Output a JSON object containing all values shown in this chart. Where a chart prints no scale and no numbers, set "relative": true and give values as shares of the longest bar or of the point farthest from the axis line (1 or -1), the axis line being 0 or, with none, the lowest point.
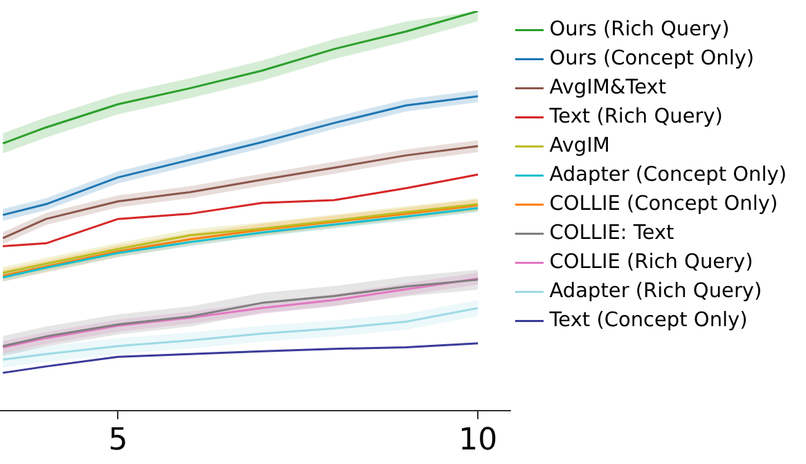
{
  "chart_data": {
    "type": "line",
    "relative": true,
    "x": [
      3.4,
      4,
      5,
      6,
      7,
      8,
      9,
      10
    ],
    "xlim": [
      3.36,
      10.45
    ],
    "xticks": [
      5,
      10
    ],
    "grid": false,
    "legend": "right",
    "marker": "none",
    "line_style": "solid",
    "tick_labels": "x",
    "series": [
      {
        "name": "Ours (Rich Query)",
        "color": "#2ca02c",
        "values": [
          0.669,
          0.709,
          0.767,
          0.807,
          0.851,
          0.905,
          0.949,
          1
        ],
        "lower": [
          0.644,
          0.684,
          0.742,
          0.782,
          0.826,
          0.88,
          0.924,
          0.975
        ],
        "upper": [
          0.694,
          0.734,
          0.792,
          0.832,
          0.876,
          0.93,
          0.974,
          1
        ]
      },
      {
        "name": "Ours (Concept Only)",
        "color": "#1f77b4",
        "values": [
          0.49,
          0.517,
          0.584,
          0.628,
          0.672,
          0.72,
          0.764,
          0.787
        ],
        "lower": [
          0.475,
          0.502,
          0.569,
          0.613,
          0.657,
          0.705,
          0.749,
          0.772
        ],
        "upper": [
          0.505,
          0.532,
          0.599,
          0.643,
          0.687,
          0.735,
          0.779,
          0.802
        ]
      },
      {
        "name": "AvgIM&Text",
        "color": "#8c564b",
        "values": [
          0.432,
          0.48,
          0.524,
          0.547,
          0.578,
          0.608,
          0.639,
          0.662
        ],
        "lower": [
          0.417,
          0.465,
          0.509,
          0.532,
          0.563,
          0.593,
          0.624,
          0.647
        ],
        "upper": [
          0.447,
          0.495,
          0.539,
          0.562,
          0.593,
          0.623,
          0.654,
          0.677
        ]
      },
      {
        "name": "Text (Rich Query)",
        "color": "#d62728",
        "values": [
          0.412,
          0.419,
          0.48,
          0.493,
          0.52,
          0.527,
          0.557,
          0.591
        ]
      },
      {
        "name": "AvgIM",
        "color": "#bcbd22",
        "values": [
          0.345,
          0.368,
          0.405,
          0.439,
          0.456,
          0.476,
          0.497,
          0.517
        ],
        "lower": [
          0.33,
          0.353,
          0.39,
          0.424,
          0.441,
          0.461,
          0.482,
          0.502
        ],
        "upper": [
          0.36,
          0.383,
          0.42,
          0.454,
          0.471,
          0.491,
          0.512,
          0.532
        ]
      },
      {
        "name": "Adapter (Concept Only)",
        "color": "#17becf",
        "values": [
          0.334,
          0.358,
          0.395,
          0.422,
          0.446,
          0.466,
          0.486,
          0.507
        ],
        "lower": [
          0.324,
          0.348,
          0.385,
          0.412,
          0.436,
          0.456,
          0.476,
          0.497
        ],
        "upper": [
          0.344,
          0.368,
          0.405,
          0.432,
          0.456,
          0.476,
          0.496,
          0.517
        ]
      },
      {
        "name": "COLLIE (Concept Only)",
        "color": "#ff7f0e",
        "values": [
          0.338,
          0.361,
          0.399,
          0.429,
          0.453,
          0.473,
          0.493,
          0.514
        ],
        "lower": [
          0.323,
          0.346,
          0.384,
          0.414,
          0.438,
          0.458,
          0.478,
          0.499
        ],
        "upper": [
          0.353,
          0.376,
          0.414,
          0.444,
          0.468,
          0.488,
          0.508,
          0.529
        ]
      },
      {
        "name": "COLLIE: Text",
        "color": "#7f7f7f",
        "values": [
          0.162,
          0.186,
          0.216,
          0.236,
          0.27,
          0.287,
          0.311,
          0.328
        ],
        "lower": [
          0.137,
          0.161,
          0.191,
          0.211,
          0.245,
          0.262,
          0.286,
          0.303
        ],
        "upper": [
          0.187,
          0.211,
          0.241,
          0.261,
          0.295,
          0.312,
          0.336,
          0.353
        ]
      },
      {
        "name": "COLLIE (Rich Query)",
        "color": "#e377c2",
        "values": [
          0.159,
          0.182,
          0.213,
          0.233,
          0.257,
          0.277,
          0.304,
          0.331
        ],
        "lower": [
          0.144,
          0.167,
          0.198,
          0.218,
          0.242,
          0.262,
          0.289,
          0.316
        ],
        "upper": [
          0.174,
          0.197,
          0.228,
          0.248,
          0.272,
          0.292,
          0.319,
          0.346
        ]
      },
      {
        "name": "Adapter (Rich Query)",
        "color": "#9edae5",
        "values": [
          0.128,
          0.142,
          0.162,
          0.176,
          0.193,
          0.206,
          0.223,
          0.257
        ],
        "lower": [
          0.108,
          0.122,
          0.142,
          0.156,
          0.173,
          0.186,
          0.203,
          0.237
        ],
        "upper": [
          0.148,
          0.162,
          0.182,
          0.196,
          0.213,
          0.226,
          0.243,
          0.277
        ]
      },
      {
        "name": "Text (Concept Only)",
        "color": "#3b3b9a",
        "values": [
          0.095,
          0.111,
          0.135,
          0.142,
          0.149,
          0.155,
          0.159,
          0.169
        ]
      }
    ]
  }
}
